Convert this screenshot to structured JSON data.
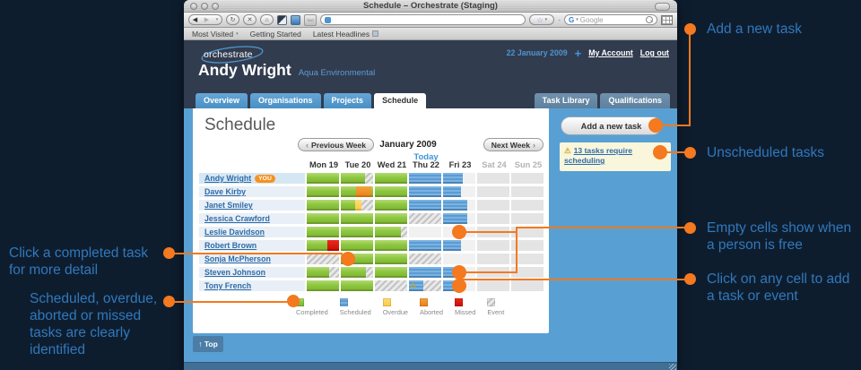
{
  "browser": {
    "title": "Schedule – Orchestrate (Staging)",
    "bookmarks": [
      "Most Visited",
      "Getting Started",
      "Latest Headlines"
    ],
    "search_placeholder": "Google"
  },
  "header": {
    "logo": "orchestrate",
    "date": "22 January 2009",
    "add": "+",
    "my_account": "My Account",
    "log_out": "Log out",
    "name": "Andy Wright",
    "org": "Aqua Environmental"
  },
  "tabs": {
    "left": [
      "Overview",
      "Organisations",
      "Projects",
      "Schedule"
    ],
    "active": "Schedule",
    "right": [
      "Task Library",
      "Qualifications"
    ]
  },
  "sidebar": {
    "add_task": "Add a new task",
    "warning": "13 tasks require scheduling"
  },
  "schedule": {
    "heading": "Schedule",
    "prev_week": "Previous Week",
    "month": "January 2009",
    "next_week": "Next Week",
    "today_label": "Today",
    "top_label": "Top",
    "days": [
      {
        "label": "Mon 19",
        "weekend": false
      },
      {
        "label": "Tue 20",
        "weekend": false
      },
      {
        "label": "Wed 21",
        "weekend": false
      },
      {
        "label": "Thu 22",
        "weekend": false
      },
      {
        "label": "Fri 23",
        "weekend": false
      },
      {
        "label": "Sat 24",
        "weekend": true
      },
      {
        "label": "Sun 25",
        "weekend": true
      }
    ],
    "rows": [
      {
        "name": "Andy Wright",
        "you": "YOU",
        "cells": [
          [
            [
              "completed",
              100
            ]
          ],
          [
            [
              "completed",
              75
            ],
            [
              "event",
              25
            ]
          ],
          [
            [
              "completed",
              100
            ]
          ],
          [
            [
              "scheduled",
              100
            ]
          ],
          [
            [
              "scheduled",
              62
            ],
            [
              "free",
              38
            ]
          ],
          [
            [
              "weekend",
              100
            ]
          ],
          [
            [
              "weekend",
              100
            ]
          ]
        ]
      },
      {
        "name": "Dave Kirby",
        "cells": [
          [
            [
              "completed",
              100
            ]
          ],
          [
            [
              "completed",
              48
            ],
            [
              "aborted",
              46
            ],
            [
              "completed",
              6
            ]
          ],
          [
            [
              "completed",
              100
            ]
          ],
          [
            [
              "scheduled",
              100
            ]
          ],
          [
            [
              "scheduled",
              55
            ],
            [
              "free",
              45
            ]
          ],
          [
            [
              "weekend",
              100
            ]
          ],
          [
            [
              "weekend",
              100
            ]
          ]
        ]
      },
      {
        "name": "Janet Smiley",
        "cells": [
          [
            [
              "completed",
              100
            ]
          ],
          [
            [
              "completed",
              45
            ],
            [
              "overdue",
              20
            ],
            [
              "event",
              35
            ]
          ],
          [
            [
              "completed",
              100
            ]
          ],
          [
            [
              "scheduled",
              100
            ]
          ],
          [
            [
              "scheduled",
              75
            ],
            [
              "free",
              25
            ]
          ],
          [
            [
              "weekend",
              100
            ]
          ],
          [
            [
              "weekend",
              100
            ]
          ]
        ]
      },
      {
        "name": "Jessica Crawford",
        "cells": [
          [
            [
              "completed",
              100
            ]
          ],
          [
            [
              "completed",
              100
            ]
          ],
          [
            [
              "completed",
              100
            ]
          ],
          [
            [
              "event",
              100
            ]
          ],
          [
            [
              "scheduled",
              75
            ],
            [
              "free",
              25
            ]
          ],
          [
            [
              "weekend",
              100
            ]
          ],
          [
            [
              "weekend",
              100
            ]
          ]
        ]
      },
      {
        "name": "Leslie Davidson",
        "cells": [
          [
            [
              "completed",
              100
            ]
          ],
          [
            [
              "completed",
              100
            ]
          ],
          [
            [
              "completed",
              80
            ],
            [
              "event",
              20
            ]
          ],
          [
            [
              "free",
              100
            ]
          ],
          [
            [
              "free",
              100
            ]
          ],
          [
            [
              "weekend",
              100
            ]
          ],
          [
            [
              "weekend",
              100
            ]
          ]
        ]
      },
      {
        "name": "Robert Brown",
        "cells": [
          [
            [
              "completed",
              65
            ],
            [
              "missed",
              35
            ]
          ],
          [
            [
              "completed",
              100
            ]
          ],
          [
            [
              "completed",
              100
            ]
          ],
          [
            [
              "scheduled",
              100
            ]
          ],
          [
            [
              "scheduled",
              55
            ],
            [
              "free",
              45
            ]
          ],
          [
            [
              "weekend",
              100
            ]
          ],
          [
            [
              "weekend",
              100
            ]
          ]
        ]
      },
      {
        "name": "Sonja McPherson",
        "cells": [
          [
            [
              "event",
              100
            ]
          ],
          [
            [
              "completed",
              100
            ]
          ],
          [
            [
              "completed",
              100
            ]
          ],
          [
            [
              "event",
              100
            ]
          ],
          [
            [
              "free",
              100
            ]
          ],
          [
            [
              "weekend",
              100
            ]
          ],
          [
            [
              "weekend",
              100
            ]
          ]
        ]
      },
      {
        "name": "Steven Johnson",
        "cells": [
          [
            [
              "completed",
              70
            ],
            [
              "event",
              30
            ]
          ],
          [
            [
              "completed",
              78
            ],
            [
              "event",
              22
            ]
          ],
          [
            [
              "completed",
              100
            ]
          ],
          [
            [
              "scheduled",
              100
            ]
          ],
          [
            [
              "scheduled",
              68
            ],
            [
              "free",
              32
            ]
          ],
          [
            [
              "weekend",
              100
            ]
          ],
          [
            [
              "weekend",
              100
            ]
          ]
        ]
      },
      {
        "name": "Tony French",
        "cells": [
          [
            [
              "completed",
              100
            ]
          ],
          [
            [
              "completed",
              100
            ]
          ],
          [
            [
              "event",
              100
            ]
          ],
          [
            [
              "scheduled",
              45,
              "warn"
            ],
            [
              "event",
              55
            ]
          ],
          [
            [
              "scheduled",
              40
            ],
            [
              "free",
              60
            ]
          ],
          [
            [
              "weekend",
              100
            ]
          ],
          [
            [
              "weekend",
              100
            ]
          ]
        ]
      }
    ],
    "legend": [
      {
        "label": "Completed",
        "type": "completed"
      },
      {
        "label": "Scheduled",
        "type": "scheduled"
      },
      {
        "label": "Overdue",
        "type": "overdue"
      },
      {
        "label": "Aborted",
        "type": "aborted"
      },
      {
        "label": "Missed",
        "type": "missed"
      },
      {
        "label": "Event",
        "type": "event"
      }
    ]
  },
  "annotations": [
    {
      "id": "add-task",
      "text": "Add a new task"
    },
    {
      "id": "unscheduled",
      "text": "Unscheduled tasks"
    },
    {
      "id": "empty-cells",
      "text": "Empty cells show when\na person is free"
    },
    {
      "id": "click-cell",
      "text": "Click on any cell to add\na task or event"
    },
    {
      "id": "completed-task",
      "text": "Click a completed task\nfor more detail"
    },
    {
      "id": "identified",
      "text": "Scheduled, overdue,\naborted or missed\ntasks are clearly\nidentified"
    }
  ],
  "icons": {
    "warning": "⚠",
    "back": "◀",
    "forward": "▶",
    "reload": "↻",
    "stop": "✕",
    "home": "⌂",
    "star": "☆",
    "dropdown": "▾",
    "chev_left": "‹",
    "chev_right": "›",
    "up": "↑"
  },
  "colors": {
    "annotation_text": "#3078bc",
    "annotation_orange": "#f4791f",
    "completed": "#8cc63e",
    "scheduled": "#5b9bd5",
    "overdue": "#fbc93d",
    "aborted": "#e87f12",
    "missed": "#d00f04",
    "header_bg": "#323c4f",
    "content_bg": "#58a0d3"
  }
}
